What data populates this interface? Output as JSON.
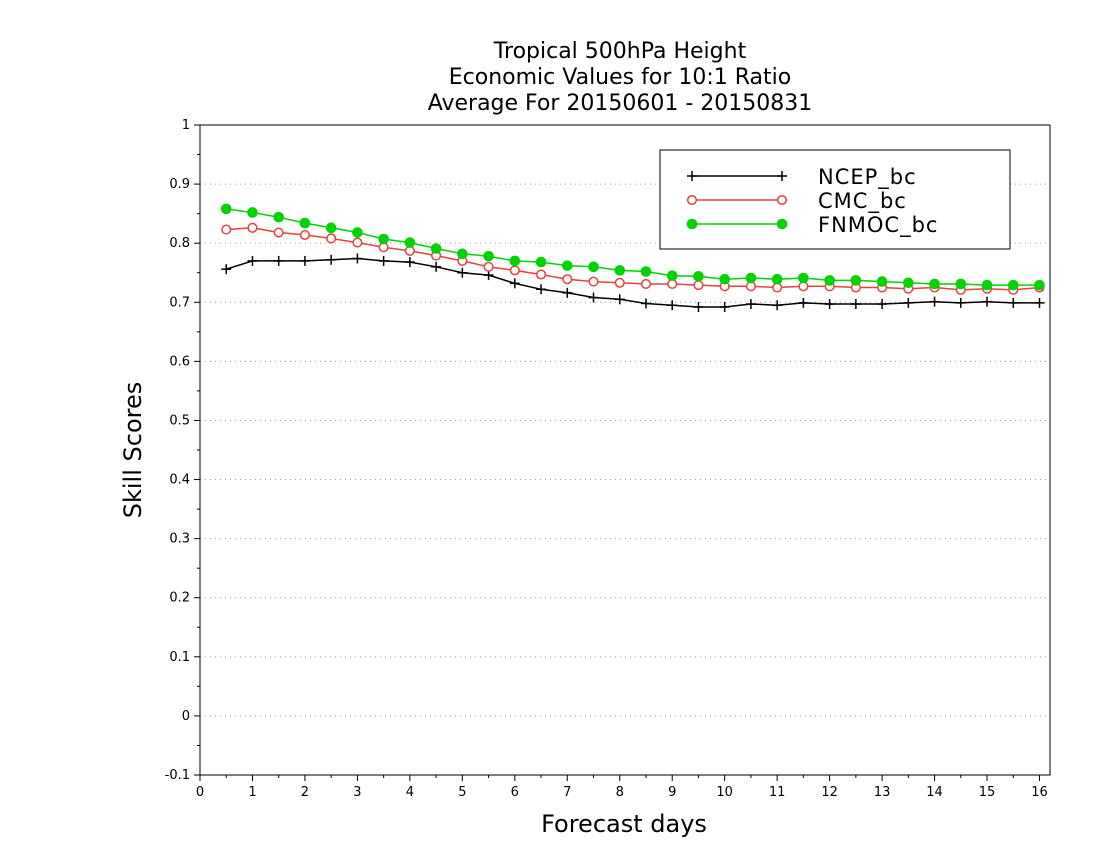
{
  "chart_data": {
    "type": "line",
    "title_lines": [
      "Tropical 500hPa Height",
      "Economic Values for 10:1 Ratio",
      "Average For 20150601 - 20150831"
    ],
    "xlabel": "Forecast days",
    "ylabel": "Skill Scores",
    "xlim": [
      0,
      16.2
    ],
    "ylim": [
      -0.1,
      1
    ],
    "xticks": [
      0,
      1,
      2,
      3,
      4,
      5,
      6,
      7,
      8,
      9,
      10,
      11,
      12,
      13,
      14,
      15,
      16
    ],
    "yticks": [
      -0.1,
      0,
      0.1,
      0.2,
      0.3,
      0.4,
      0.5,
      0.6,
      0.7,
      0.8,
      0.9,
      1
    ],
    "ytick_labels": [
      "-0.1",
      "0",
      "0.1",
      "0.2",
      "0.3",
      "0.4",
      "0.5",
      "0.6",
      "0.7",
      "0.8",
      "0.9",
      "1"
    ],
    "grid": "horizontal dotted",
    "legend_position": "top-right",
    "x": [
      0.5,
      1,
      1.5,
      2,
      2.5,
      3,
      3.5,
      4,
      4.5,
      5,
      5.5,
      6,
      6.5,
      7,
      7.5,
      8,
      8.5,
      9,
      9.5,
      10,
      10.5,
      11,
      11.5,
      12,
      12.5,
      13,
      13.5,
      14,
      14.5,
      15,
      15.5,
      16
    ],
    "series": [
      {
        "name": "NCEP_bc",
        "color": "#000000",
        "marker": "plus",
        "values": [
          0.756,
          0.77,
          0.77,
          0.77,
          0.772,
          0.774,
          0.77,
          0.768,
          0.76,
          0.75,
          0.746,
          0.732,
          0.722,
          0.716,
          0.708,
          0.705,
          0.698,
          0.695,
          0.692,
          0.692,
          0.697,
          0.695,
          0.699,
          0.697,
          0.697,
          0.697,
          0.699,
          0.701,
          0.699,
          0.701,
          0.699,
          0.699
        ]
      },
      {
        "name": "CMC_bc",
        "color": "#e8403c",
        "marker": "open-circle",
        "values": [
          0.823,
          0.826,
          0.818,
          0.814,
          0.808,
          0.801,
          0.793,
          0.787,
          0.779,
          0.77,
          0.76,
          0.754,
          0.747,
          0.739,
          0.735,
          0.733,
          0.731,
          0.731,
          0.729,
          0.727,
          0.727,
          0.725,
          0.727,
          0.727,
          0.725,
          0.725,
          0.723,
          0.725,
          0.721,
          0.723,
          0.721,
          0.725
        ]
      },
      {
        "name": "FNMOC_bc",
        "color": "#00d400",
        "marker": "filled-circle",
        "values": [
          0.858,
          0.852,
          0.844,
          0.834,
          0.826,
          0.818,
          0.807,
          0.801,
          0.791,
          0.782,
          0.778,
          0.77,
          0.768,
          0.762,
          0.76,
          0.754,
          0.752,
          0.745,
          0.744,
          0.739,
          0.741,
          0.739,
          0.741,
          0.737,
          0.737,
          0.735,
          0.733,
          0.731,
          0.731,
          0.729,
          0.729,
          0.729
        ]
      }
    ]
  }
}
